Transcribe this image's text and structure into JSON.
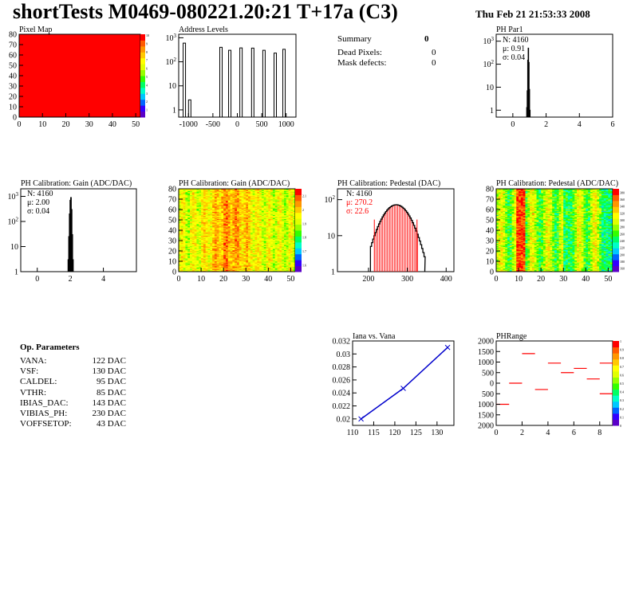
{
  "header": {
    "title": "shortTests M0469-080221.20:21 T+17a (C3)",
    "date": "Thu Feb 21 21:53:33 2008"
  },
  "summary": {
    "title": "Summary",
    "total": "0",
    "items": [
      {
        "label": "Dead Pixels:",
        "value": "0"
      },
      {
        "label": "Mask defects:",
        "value": "0"
      }
    ]
  },
  "op_params": {
    "title": "Op. Parameters",
    "items": [
      {
        "label": "VANA:",
        "value": "122 DAC"
      },
      {
        "label": "VSF:",
        "value": "130 DAC"
      },
      {
        "label": "CALDEL:",
        "value": "95 DAC"
      },
      {
        "label": "VTHR:",
        "value": "85 DAC"
      },
      {
        "label": "IBIAS_DAC:",
        "value": "143 DAC"
      },
      {
        "label": "VIBIAS_PH:",
        "value": "230 DAC"
      },
      {
        "label": "VOFFSETOP:",
        "value": "43 DAC"
      }
    ]
  },
  "colors": {
    "red": "#ff0000",
    "blue_line": "#0000cc",
    "palette": [
      "#5a00c8",
      "#3200ff",
      "#0064ff",
      "#00c8ff",
      "#00ffc8",
      "#00ff64",
      "#32ff00",
      "#96ff00",
      "#e1ff00",
      "#ffff00",
      "#ffc800",
      "#ff9600",
      "#ff5a00",
      "#ff0000"
    ]
  },
  "chart_data": [
    {
      "id": "pixel-map",
      "type": "heatmap",
      "title": "Pixel Map",
      "xlim": [
        0,
        52
      ],
      "ylim": [
        0,
        80
      ],
      "xticks": [
        "0",
        "10",
        "20",
        "30",
        "40",
        "50"
      ],
      "yticks": [
        "0",
        "10",
        "20",
        "30",
        "40",
        "50",
        "60",
        "70",
        "80"
      ],
      "fill": "uniform-max",
      "zticks": [
        "1",
        "2",
        "3",
        "4",
        "5",
        "6",
        "7",
        "8",
        "9",
        "10"
      ]
    },
    {
      "id": "address-levels",
      "type": "bar",
      "title": "Address Levels",
      "yscale": "log",
      "xlim": [
        -1200,
        1200
      ],
      "xticks": [
        "-1000",
        "-500",
        "0",
        "500",
        "1000"
      ],
      "yticks": [
        "1",
        "10",
        "10^2",
        "10^3"
      ],
      "peaks": [
        {
          "x": -1060,
          "y": 600
        },
        {
          "x": -950,
          "y": 2.6
        },
        {
          "x": -310,
          "y": 400
        },
        {
          "x": -130,
          "y": 300
        },
        {
          "x": 100,
          "y": 380
        },
        {
          "x": 340,
          "y": 370
        },
        {
          "x": 570,
          "y": 300
        },
        {
          "x": 800,
          "y": 230
        },
        {
          "x": 980,
          "y": 330
        }
      ]
    },
    {
      "id": "ph-par1",
      "type": "bar",
      "title": "PH Par1",
      "yscale": "log",
      "xlim": [
        -1,
        6
      ],
      "xticks": [
        "0",
        "2",
        "4",
        "6"
      ],
      "yticks": [
        "1",
        "10",
        "10^2",
        "10^3"
      ],
      "stats": {
        "n": "N: 4160",
        "mean": "μ: 0.91",
        "sigma": "σ: 0.04"
      },
      "bins": [
        [
          0.8,
          0.5
        ],
        [
          0.83,
          1.3
        ],
        [
          0.86,
          7
        ],
        [
          0.89,
          150
        ],
        [
          0.92,
          500
        ],
        [
          0.95,
          120
        ],
        [
          0.98,
          8
        ],
        [
          1.01,
          1
        ]
      ]
    },
    {
      "id": "gain-1d",
      "type": "bar",
      "title": "PH Calibration: Gain (ADC/DAC)",
      "yscale": "log",
      "xlim": [
        -1,
        6
      ],
      "xticks": [
        "0",
        "2",
        "4"
      ],
      "yticks": [
        "1",
        "10",
        "10^2",
        "10^3"
      ],
      "stats": {
        "n": "N: 4160",
        "mean": "μ: 2.00",
        "sigma": "σ: 0.04"
      },
      "bins": [
        [
          1.82,
          1
        ],
        [
          1.86,
          3
        ],
        [
          1.9,
          25
        ],
        [
          1.94,
          200
        ],
        [
          1.98,
          700
        ],
        [
          2.02,
          900
        ],
        [
          2.06,
          300
        ],
        [
          2.1,
          30
        ],
        [
          2.14,
          3
        ]
      ]
    },
    {
      "id": "gain-2d",
      "type": "heatmap",
      "title": "PH Calibration: Gain (ADC/DAC)",
      "xlim": [
        0,
        52
      ],
      "ylim": [
        0,
        80
      ],
      "xticks": [
        "0",
        "10",
        "20",
        "30",
        "40",
        "50"
      ],
      "yticks": [
        "0",
        "10",
        "20",
        "30",
        "40",
        "50",
        "60",
        "70",
        "80"
      ],
      "zticks": [
        "1.6",
        "1.7",
        "1.8",
        "1.9",
        "2",
        "2.1"
      ]
    },
    {
      "id": "pedestal-1d",
      "type": "bar",
      "title": "PH Calibration: Pedestal (DAC)",
      "yscale": "log",
      "xlim": [
        120,
        420
      ],
      "xticks": [
        "200",
        "300",
        "400"
      ],
      "yticks": [
        "1",
        "10",
        "10^2"
      ],
      "stats": {
        "n": "N: 4160",
        "mean": "μ: 270.2",
        "sigma": "σ: 22.6"
      },
      "mean": 270.2,
      "sigma": 22.6,
      "peak": 72,
      "fit_range": [
        215,
        325
      ]
    },
    {
      "id": "pedestal-2d",
      "type": "heatmap",
      "title": "PH Calibration: Pedestal (ADC/DAC)",
      "xlim": [
        0,
        52
      ],
      "ylim": [
        0,
        80
      ],
      "xticks": [
        "0",
        "10",
        "20",
        "30",
        "40",
        "50"
      ],
      "yticks": [
        "0",
        "10",
        "20",
        "30",
        "40",
        "50",
        "60",
        "70",
        "80"
      ],
      "zticks": [
        "160",
        "180",
        "200",
        "220",
        "240",
        "260",
        "280",
        "300",
        "320",
        "340",
        "360",
        "380"
      ]
    },
    {
      "id": "iana-vana",
      "type": "line",
      "title": "Iana vs. Vana",
      "xlim": [
        110,
        134
      ],
      "ylim": [
        0.019,
        0.032
      ],
      "xticks": [
        "110",
        "115",
        "120",
        "125",
        "130"
      ],
      "yticks": [
        "0.02",
        "0.022",
        "0.024",
        "0.026",
        "0.028",
        "0.03",
        "0.032"
      ],
      "x": [
        112,
        122,
        132.5
      ],
      "y": [
        0.02,
        0.0247,
        0.031
      ]
    },
    {
      "id": "phrange",
      "type": "scatter",
      "title": "PHRange",
      "xlim": [
        0,
        9
      ],
      "ylim": [
        -2000,
        2000
      ],
      "xticks": [
        "0",
        "2",
        "4",
        "6",
        "8"
      ],
      "yticks": [
        "2000",
        "1500",
        "1000",
        "500",
        "0",
        "500",
        "1000",
        "1500",
        "2000"
      ],
      "zticks": [
        "0",
        "0.1",
        "0.2",
        "0.3",
        "0.4",
        "0.5",
        "0.6",
        "0.7",
        "0.8",
        "0.9",
        "1"
      ],
      "segments": [
        [
          0,
          1,
          -1000
        ],
        [
          1,
          2,
          0
        ],
        [
          2,
          3,
          1400
        ],
        [
          3,
          4,
          -300
        ],
        [
          4,
          5,
          950
        ],
        [
          5,
          6,
          500
        ],
        [
          6,
          7,
          700
        ],
        [
          7,
          8,
          200
        ],
        [
          8,
          9,
          950
        ],
        [
          8,
          9,
          -500
        ]
      ]
    }
  ]
}
